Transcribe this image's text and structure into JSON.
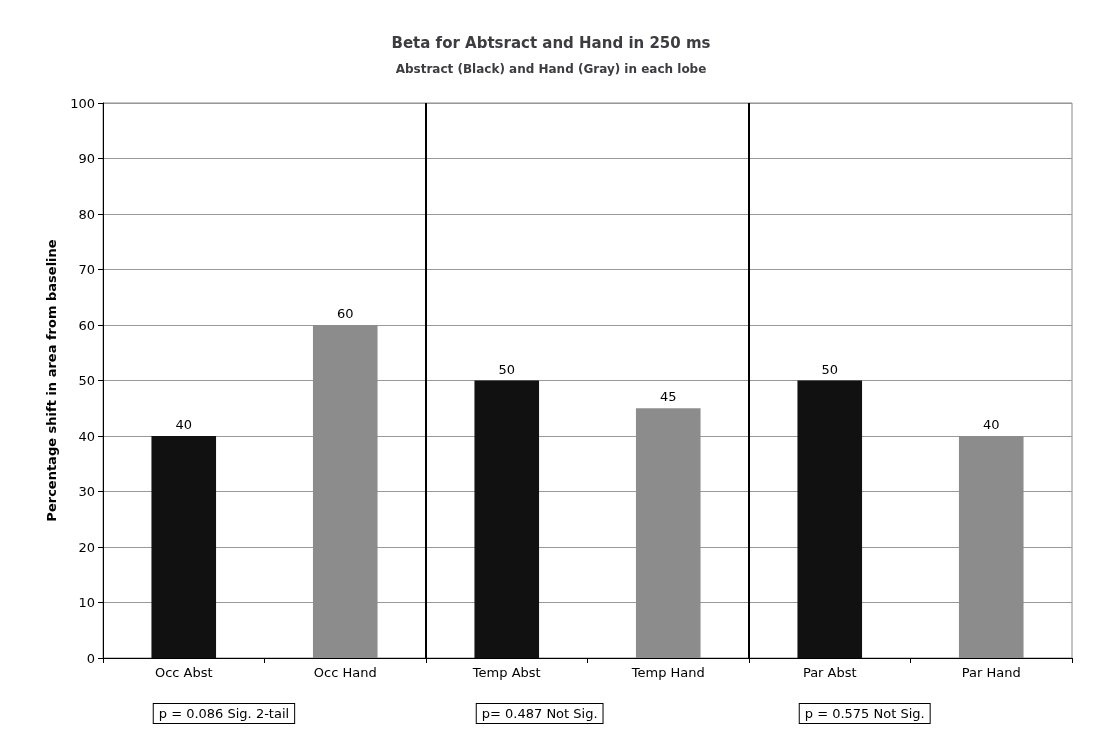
{
  "chart_data": {
    "type": "bar",
    "title": "Beta for Abtsract and Hand in 250 ms",
    "subtitle": "Abstract (Black) and Hand (Gray) in each lobe",
    "ylabel": "Percentage shift in area from baseline",
    "categories": [
      "Occ Abst",
      "Occ Hand",
      "Temp Abst",
      "Temp Hand",
      "Par Abst",
      "Par Hand"
    ],
    "values": [
      40,
      60,
      50,
      45,
      50,
      40
    ],
    "colors": [
      "#111111",
      "#8c8c8c",
      "#111111",
      "#8c8c8c",
      "#111111",
      "#8c8c8c"
    ],
    "ylim": [
      0,
      100
    ],
    "yticks": [
      0,
      10,
      20,
      30,
      40,
      50,
      60,
      70,
      80,
      90,
      100
    ],
    "grid": "y",
    "data_labels": true,
    "annotations": [
      "p = 0.086 Sig. 2-tail",
      "p= 0.487 Not Sig.",
      "p = 0.575 Not Sig."
    ]
  }
}
